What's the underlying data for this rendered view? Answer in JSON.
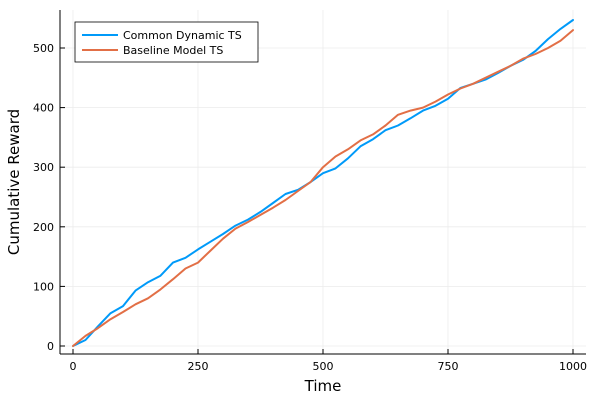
{
  "chart_data": {
    "type": "line",
    "title": "",
    "xlabel": "Time",
    "ylabel": "Cumulative Reward",
    "xlim": [
      0,
      1000
    ],
    "ylim": [
      0,
      550
    ],
    "xticks": [
      0,
      250,
      500,
      750,
      1000
    ],
    "yticks": [
      0,
      100,
      200,
      300,
      400,
      500
    ],
    "grid": true,
    "legend_position": "top-left",
    "series": [
      {
        "name": "Common Dynamic TS",
        "color": "#009af9",
        "x": [
          0,
          25,
          50,
          75,
          100,
          125,
          150,
          175,
          200,
          225,
          250,
          275,
          300,
          325,
          350,
          375,
          400,
          425,
          450,
          475,
          500,
          525,
          550,
          575,
          600,
          625,
          650,
          675,
          700,
          725,
          750,
          775,
          800,
          825,
          850,
          875,
          900,
          925,
          950,
          975,
          1000
        ],
        "y": [
          0,
          10,
          33,
          55,
          67,
          93,
          107,
          118,
          140,
          148,
          162,
          175,
          188,
          202,
          212,
          225,
          240,
          255,
          262,
          275,
          290,
          298,
          315,
          335,
          347,
          362,
          370,
          382,
          395,
          403,
          415,
          433,
          440,
          447,
          458,
          470,
          480,
          495,
          515,
          532,
          547
        ]
      },
      {
        "name": "Baseline Model TS",
        "color": "#e26f46",
        "x": [
          0,
          25,
          50,
          75,
          100,
          125,
          150,
          175,
          200,
          225,
          250,
          275,
          300,
          325,
          350,
          375,
          400,
          425,
          450,
          475,
          500,
          525,
          550,
          575,
          600,
          625,
          650,
          675,
          700,
          725,
          750,
          775,
          800,
          825,
          850,
          875,
          900,
          925,
          950,
          975,
          1000
        ],
        "y": [
          0,
          17,
          30,
          45,
          57,
          70,
          80,
          95,
          112,
          130,
          140,
          160,
          180,
          197,
          208,
          220,
          232,
          245,
          260,
          275,
          300,
          318,
          330,
          345,
          355,
          370,
          388,
          395,
          400,
          410,
          422,
          432,
          440,
          450,
          460,
          470,
          482,
          490,
          500,
          512,
          530
        ]
      }
    ]
  }
}
